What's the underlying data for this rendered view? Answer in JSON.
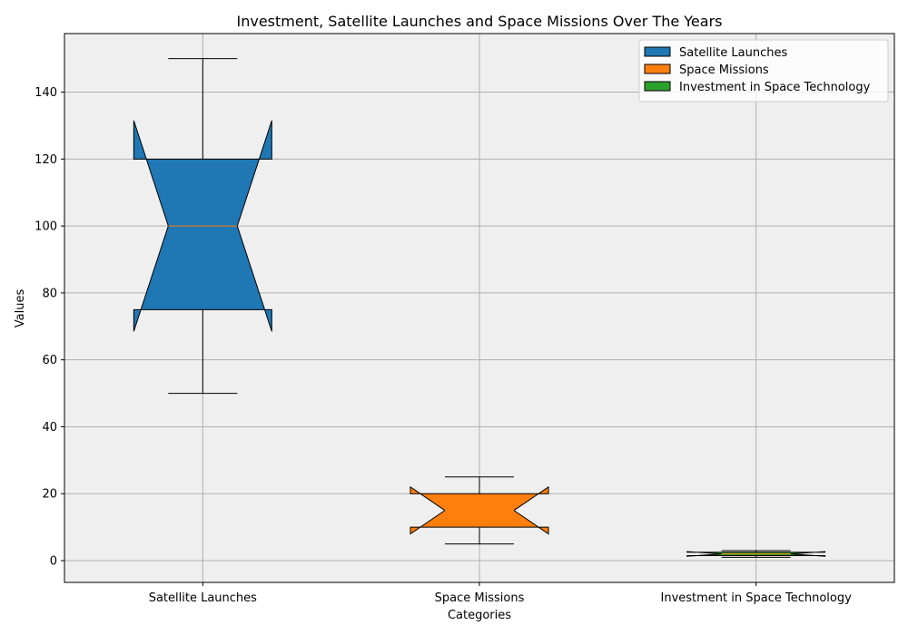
{
  "chart_data": {
    "type": "boxplot",
    "title": "Investment, Satellite Launches and Space Missions Over The Years",
    "xlabel": "Categories",
    "ylabel": "Values",
    "ylim": [
      -6.5,
      157.5
    ],
    "yticks": [
      0,
      20,
      40,
      60,
      80,
      100,
      120,
      140
    ],
    "grid": true,
    "notched": true,
    "legend_position": "top-right",
    "background_color": "#efefef",
    "median_color": "#ff7f0e",
    "categories": [
      "Satellite Launches",
      "Space Missions",
      "Investment in Space Technology"
    ],
    "series": [
      {
        "name": "Satellite Launches",
        "color": "#1f77b4",
        "whisker_low": 50,
        "q1": 75,
        "median": 100,
        "q3": 120,
        "whisker_high": 150,
        "notch_low": 68.5,
        "notch_high": 131.5
      },
      {
        "name": "Space Missions",
        "color": "#ff7f0e",
        "whisker_low": 5,
        "q1": 10,
        "median": 15,
        "q3": 20,
        "whisker_high": 25,
        "notch_low": 8.0,
        "notch_high": 22.0
      },
      {
        "name": "Investment in Space Technology",
        "color": "#2ca02c",
        "whisker_low": 1.0,
        "q1": 1.5,
        "median": 2.0,
        "q3": 2.5,
        "whisker_high": 3.0,
        "notch_low": 1.3,
        "notch_high": 2.7
      }
    ]
  }
}
